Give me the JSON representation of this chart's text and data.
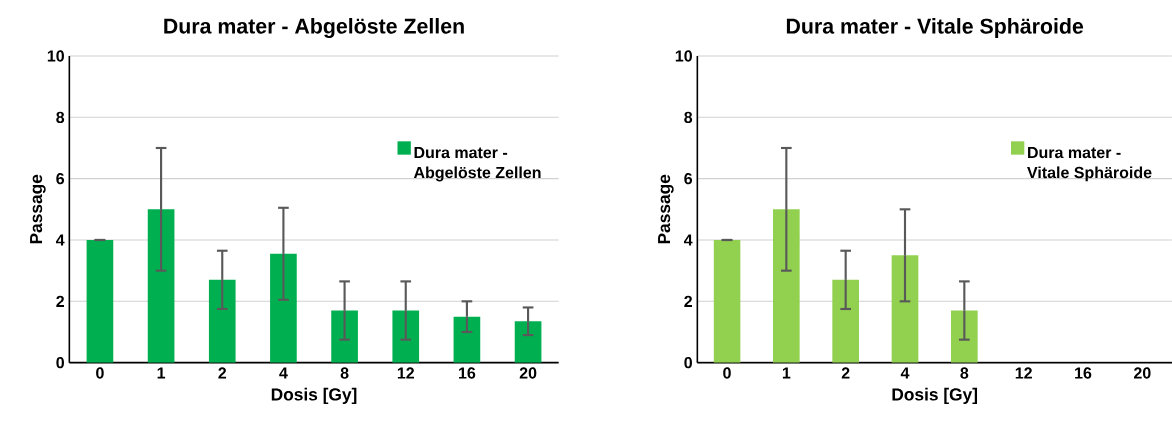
{
  "chart_data": [
    {
      "type": "bar",
      "title": "Dura mater - Abgelöste Zellen",
      "xlabel": "Dosis [Gy]",
      "ylabel": "Passage",
      "categories": [
        "0",
        "1",
        "2",
        "4",
        "8",
        "12",
        "16",
        "20"
      ],
      "series": [
        {
          "name": "Dura mater - Abgelöste Zellen",
          "color": "#00b050",
          "values": [
            4,
            5,
            2.7,
            3.55,
            1.7,
            1.7,
            1.5,
            1.35
          ],
          "errors": [
            0,
            2,
            0.95,
            1.5,
            0.95,
            0.95,
            0.5,
            0.45
          ]
        }
      ],
      "ylim": [
        0,
        10
      ],
      "yticks": [
        0,
        2,
        4,
        6,
        8,
        10
      ],
      "grid": "y",
      "legend": "right"
    },
    {
      "type": "bar",
      "title": "Dura mater - Vitale Sphäroide",
      "xlabel": "Dosis [Gy]",
      "ylabel": "Passage",
      "categories": [
        "0",
        "1",
        "2",
        "4",
        "8",
        "12",
        "16",
        "20"
      ],
      "series": [
        {
          "name": "Dura mater - Vitale Sphäroide",
          "color": "#92d050",
          "values": [
            4,
            5,
            2.7,
            3.5,
            1.7,
            null,
            null,
            null
          ],
          "errors": [
            0,
            2,
            0.95,
            1.5,
            0.95,
            null,
            null,
            null
          ]
        }
      ],
      "ylim": [
        0,
        10
      ],
      "yticks": [
        0,
        2,
        4,
        6,
        8,
        10
      ],
      "grid": "y",
      "legend": "right"
    }
  ]
}
